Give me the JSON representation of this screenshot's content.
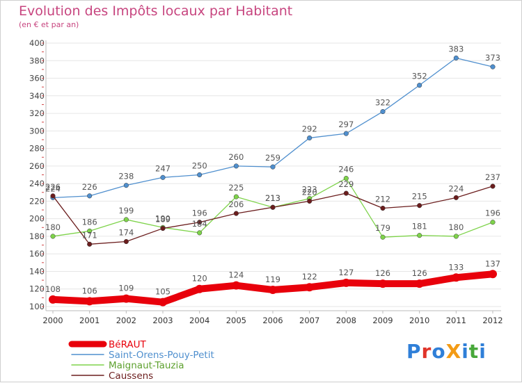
{
  "title": "Evolution des Impôts locaux par Habitant",
  "subtitle": "(en € et par an)",
  "logo": {
    "text": "ProXiti",
    "letters": [
      "P",
      "r",
      "o",
      "X",
      "i",
      "t",
      "i"
    ],
    "colors": [
      "#2f7fd8",
      "#e0342a",
      "#2f7fd8",
      "#f39b15",
      "#2f7fd8",
      "#48a83a",
      "#2f7fd8"
    ]
  },
  "chart_data": {
    "type": "line",
    "x": [
      2000,
      2001,
      2002,
      2003,
      2004,
      2005,
      2006,
      2007,
      2008,
      2009,
      2010,
      2011,
      2012
    ],
    "ylim": [
      100,
      400
    ],
    "yticks": [
      100,
      120,
      140,
      160,
      180,
      200,
      220,
      240,
      260,
      280,
      300,
      320,
      340,
      360,
      380,
      400
    ],
    "grid": "horizontal",
    "legend_position": "bottom-left",
    "series": [
      {
        "name": "BéRAUT",
        "color": "#e8000b",
        "values": [
          108,
          106,
          109,
          105,
          120,
          124,
          119,
          122,
          127,
          126,
          126,
          133,
          137
        ]
      },
      {
        "name": "Saint-Orens-Pouy-Petit",
        "color": "#4f8fce",
        "values": [
          224,
          226,
          238,
          247,
          250,
          260,
          259,
          292,
          297,
          322,
          352,
          383,
          373
        ]
      },
      {
        "name": "Maignaut-Tauzia",
        "color": "#7ed34a",
        "values": [
          180,
          186,
          199,
          190,
          184,
          225,
          213,
          223,
          246,
          179,
          181,
          180,
          196
        ]
      },
      {
        "name": "Caussens",
        "color": "#6b1d1d",
        "values": [
          226,
          171,
          174,
          189,
          196,
          206,
          213,
          220,
          229,
          212,
          215,
          224,
          237
        ]
      }
    ]
  }
}
